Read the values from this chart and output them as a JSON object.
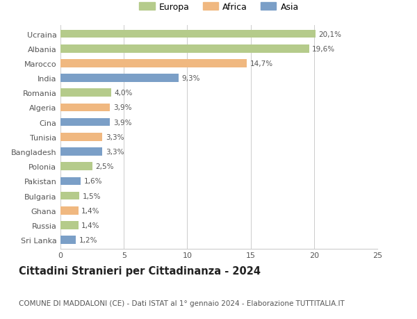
{
  "countries": [
    "Sri Lanka",
    "Russia",
    "Ghana",
    "Bulgaria",
    "Pakistan",
    "Polonia",
    "Bangladesh",
    "Tunisia",
    "Cina",
    "Algeria",
    "Romania",
    "India",
    "Marocco",
    "Albania",
    "Ucraina"
  ],
  "values": [
    1.2,
    1.4,
    1.4,
    1.5,
    1.6,
    2.5,
    3.3,
    3.3,
    3.9,
    3.9,
    4.0,
    9.3,
    14.7,
    19.6,
    20.1
  ],
  "continents": [
    "Asia",
    "Europa",
    "Africa",
    "Europa",
    "Asia",
    "Europa",
    "Asia",
    "Africa",
    "Asia",
    "Africa",
    "Europa",
    "Asia",
    "Africa",
    "Europa",
    "Europa"
  ],
  "labels": [
    "1,2%",
    "1,4%",
    "1,4%",
    "1,5%",
    "1,6%",
    "2,5%",
    "3,3%",
    "3,3%",
    "3,9%",
    "3,9%",
    "4,0%",
    "9,3%",
    "14,7%",
    "19,6%",
    "20,1%"
  ],
  "continent_colors": {
    "Europa": "#b5cb8b",
    "Africa": "#f0b880",
    "Asia": "#7b9fc7"
  },
  "legend_entries": [
    "Europa",
    "Africa",
    "Asia"
  ],
  "xlim": [
    0,
    25
  ],
  "xticks": [
    0,
    5,
    10,
    15,
    20,
    25
  ],
  "title": "Cittadini Stranieri per Cittadinanza - 2024",
  "subtitle": "COMUNE DI MADDALONI (CE) - Dati ISTAT al 1° gennaio 2024 - Elaborazione TUTTITALIA.IT",
  "title_fontsize": 10.5,
  "subtitle_fontsize": 7.5,
  "bar_height": 0.55,
  "background_color": "#ffffff",
  "grid_color": "#cccccc",
  "label_fontsize": 7.5,
  "ytick_fontsize": 8,
  "xtick_fontsize": 8
}
